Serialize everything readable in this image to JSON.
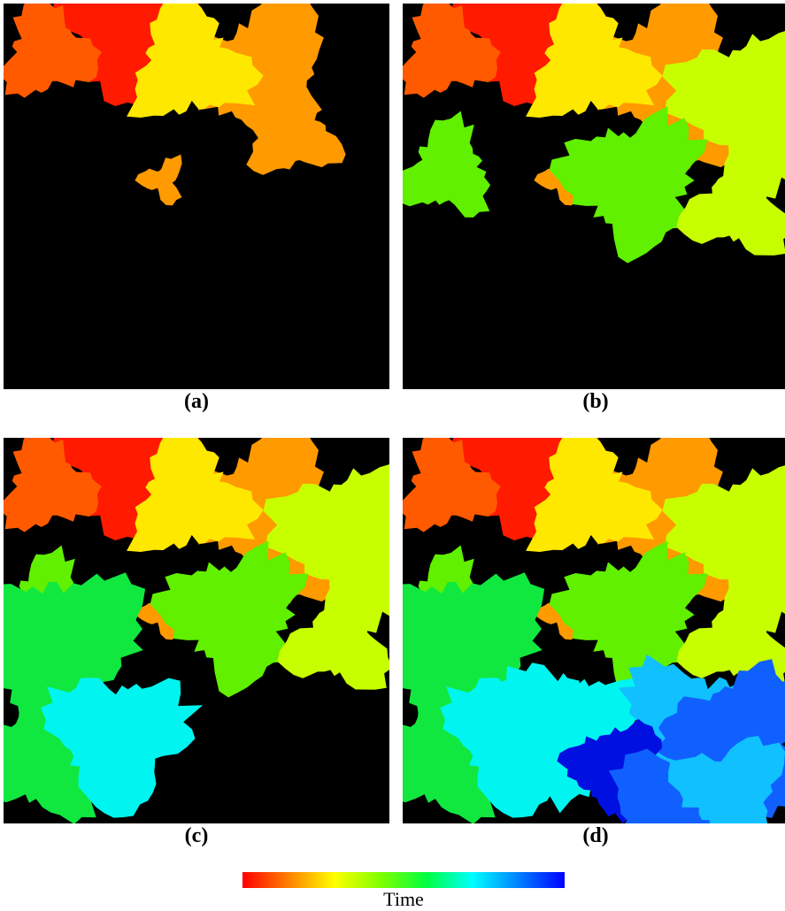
{
  "panels": [
    {
      "id": "a",
      "caption": "(a)",
      "stage": 1
    },
    {
      "id": "b",
      "caption": "(b)",
      "stage": 2
    },
    {
      "id": "c",
      "caption": "(c)",
      "stage": 3
    },
    {
      "id": "d",
      "caption": "(d)",
      "stage": 4
    }
  ],
  "colorbar": {
    "label": "Time",
    "colors": [
      "#ff0000",
      "#ff8000",
      "#ffff00",
      "#80ff00",
      "#00ff40",
      "#00ffff",
      "#0080ff",
      "#0000ff"
    ]
  },
  "region_colors": {
    "red": "#ff1a00",
    "orange_red": "#ff5a00",
    "orange": "#ff9a00",
    "yellow": "#ffe800",
    "yellow_green": "#c8ff00",
    "green": "#60f000",
    "bright_green": "#10e840",
    "cyan": "#00f5f0",
    "sky_blue": "#10c0ff",
    "blue": "#1060ff",
    "dark_blue": "#0010e0",
    "background": "#000000"
  }
}
